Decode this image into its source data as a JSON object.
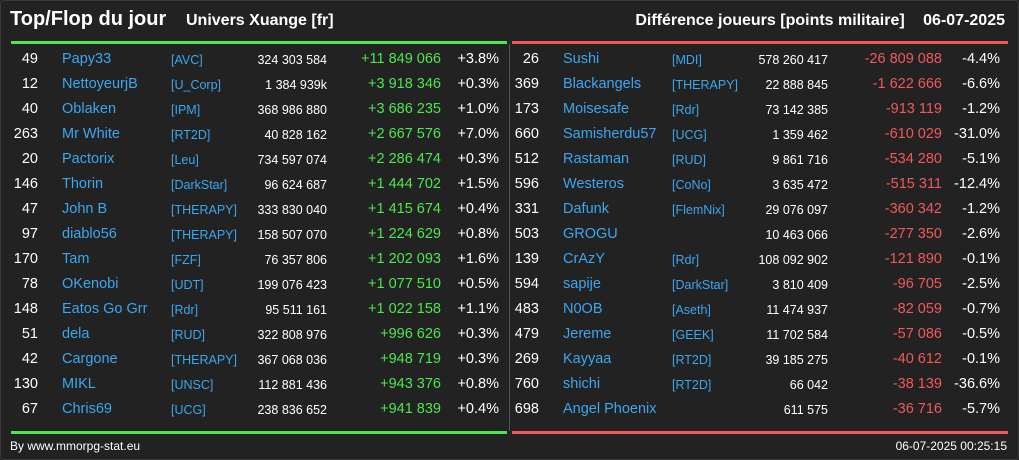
{
  "header": {
    "title": "Top/Flop du jour",
    "subtitle": "Univers Xuange [fr]",
    "right_title": "Différence joueurs [points militaire]",
    "date": "06-07-2025"
  },
  "colors": {
    "top_accent": "#4ee64e",
    "flop_accent": "#f2585a",
    "name": "#3ba7f0",
    "background": "#222222"
  },
  "top": [
    {
      "rank": "49",
      "name": "Papy33",
      "clan": "[AVC]",
      "points": "324 303 584",
      "diff": "+11 849 066",
      "pct": "+3.8%"
    },
    {
      "rank": "12",
      "name": "NettoyeurjB",
      "clan": "[U_Corp]",
      "points": "1 384 939k",
      "diff": "+3 918 346",
      "pct": "+0.3%"
    },
    {
      "rank": "40",
      "name": "Oblaken",
      "clan": "[IPM]",
      "points": "368 986 880",
      "diff": "+3 686 235",
      "pct": "+1.0%"
    },
    {
      "rank": "263",
      "name": "Mr White",
      "clan": "[RT2D]",
      "points": "40 828 162",
      "diff": "+2 667 576",
      "pct": "+7.0%"
    },
    {
      "rank": "20",
      "name": "Pactorix",
      "clan": "[Leu]",
      "points": "734 597 074",
      "diff": "+2 286 474",
      "pct": "+0.3%"
    },
    {
      "rank": "146",
      "name": "Thorin",
      "clan": "[DarkStar]",
      "points": "96 624 687",
      "diff": "+1 444 702",
      "pct": "+1.5%"
    },
    {
      "rank": "47",
      "name": "John B",
      "clan": "[THERAPY]",
      "points": "333 830 040",
      "diff": "+1 415 674",
      "pct": "+0.4%"
    },
    {
      "rank": "97",
      "name": "diablo56",
      "clan": "[THERAPY]",
      "points": "158 507 070",
      "diff": "+1 224 629",
      "pct": "+0.8%"
    },
    {
      "rank": "170",
      "name": "Tam",
      "clan": "[FZF]",
      "points": "76 357 806",
      "diff": "+1 202 093",
      "pct": "+1.6%"
    },
    {
      "rank": "78",
      "name": "OKenobi",
      "clan": "[UDT]",
      "points": "199 076 423",
      "diff": "+1 077 510",
      "pct": "+0.5%"
    },
    {
      "rank": "148",
      "name": "Eatos Go Grr",
      "clan": "[Rdr]",
      "points": "95 511 161",
      "diff": "+1 022 158",
      "pct": "+1.1%"
    },
    {
      "rank": "51",
      "name": "dela",
      "clan": "[RUD]",
      "points": "322 808 976",
      "diff": "+996 626",
      "pct": "+0.3%"
    },
    {
      "rank": "42",
      "name": "Cargone",
      "clan": "[THERAPY]",
      "points": "367 068 036",
      "diff": "+948 719",
      "pct": "+0.3%"
    },
    {
      "rank": "130",
      "name": "MIKL",
      "clan": "[UNSC]",
      "points": "112 881 436",
      "diff": "+943 376",
      "pct": "+0.8%"
    },
    {
      "rank": "67",
      "name": "Chris69",
      "clan": "[UCG]",
      "points": "238 836 652",
      "diff": "+941 839",
      "pct": "+0.4%"
    }
  ],
  "flop": [
    {
      "rank": "26",
      "name": "Sushi",
      "clan": "[MDI]",
      "points": "578 260 417",
      "diff": "-26 809 088",
      "pct": "-4.4%"
    },
    {
      "rank": "369",
      "name": "Blackangels",
      "clan": "[THERAPY]",
      "points": "22 888 845",
      "diff": "-1 622 666",
      "pct": "-6.6%"
    },
    {
      "rank": "173",
      "name": "Moisesafe",
      "clan": "[Rdr]",
      "points": "73 142 385",
      "diff": "-913 119",
      "pct": "-1.2%"
    },
    {
      "rank": "660",
      "name": "Samisherdu57",
      "clan": "[UCG]",
      "points": "1 359 462",
      "diff": "-610 029",
      "pct": "-31.0%"
    },
    {
      "rank": "512",
      "name": "Rastaman",
      "clan": "[RUD]",
      "points": "9 861 716",
      "diff": "-534 280",
      "pct": "-5.1%"
    },
    {
      "rank": "596",
      "name": "Westeros",
      "clan": "[CoNo]",
      "points": "3 635 472",
      "diff": "-515 311",
      "pct": "-12.4%"
    },
    {
      "rank": "331",
      "name": "Dafunk",
      "clan": "[FlemNix]",
      "points": "29 076 097",
      "diff": "-360 342",
      "pct": "-1.2%"
    },
    {
      "rank": "503",
      "name": "GROGU",
      "clan": "",
      "points": "10 463 066",
      "diff": "-277 350",
      "pct": "-2.6%"
    },
    {
      "rank": "139",
      "name": "CrAzY",
      "clan": "[Rdr]",
      "points": "108 092 902",
      "diff": "-121 890",
      "pct": "-0.1%"
    },
    {
      "rank": "594",
      "name": "sapije",
      "clan": "[DarkStar]",
      "points": "3 810 409",
      "diff": "-96 705",
      "pct": "-2.5%"
    },
    {
      "rank": "483",
      "name": "N0OB",
      "clan": "[Aseth]",
      "points": "11 474 937",
      "diff": "-82 059",
      "pct": "-0.7%"
    },
    {
      "rank": "479",
      "name": "Jereme",
      "clan": "[GEEK]",
      "points": "11 702 584",
      "diff": "-57 086",
      "pct": "-0.5%"
    },
    {
      "rank": "269",
      "name": "Kayyaa",
      "clan": "[RT2D]",
      "points": "39 185 275",
      "diff": "-40 612",
      "pct": "-0.1%"
    },
    {
      "rank": "760",
      "name": "shichi",
      "clan": "[RT2D]",
      "points": "66 042",
      "diff": "-38 139",
      "pct": "-36.6%"
    },
    {
      "rank": "698",
      "name": "Angel Phoenix",
      "clan": "",
      "points": "611 575",
      "diff": "-36 716",
      "pct": "-5.7%"
    }
  ],
  "footer": {
    "left": "By www.mmorpg-stat.eu",
    "right": "06-07-2025 00:25:15"
  }
}
